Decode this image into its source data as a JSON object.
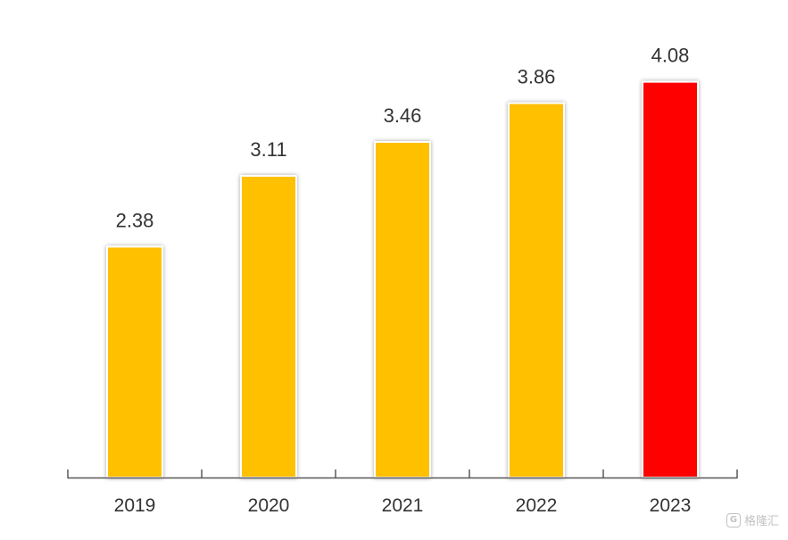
{
  "chart_data": {
    "type": "bar",
    "categories": [
      "2019",
      "2020",
      "2021",
      "2022",
      "2023"
    ],
    "values": [
      2.38,
      3.11,
      3.46,
      3.86,
      4.08
    ],
    "value_labels": [
      "2.38",
      "3.11",
      "3.46",
      "3.86",
      "4.08"
    ],
    "title": "",
    "xlabel": "",
    "ylabel": "",
    "ylim": [
      0,
      4.5
    ],
    "grid": false,
    "legend": "none",
    "bar_colors": [
      "#FFC000",
      "#FFC000",
      "#FFC000",
      "#FFC000",
      "#FF0000"
    ],
    "axis_color": "#595959",
    "label_color": "#333333"
  },
  "watermark": {
    "icon": "g-logo-icon",
    "text": "格隆汇"
  }
}
